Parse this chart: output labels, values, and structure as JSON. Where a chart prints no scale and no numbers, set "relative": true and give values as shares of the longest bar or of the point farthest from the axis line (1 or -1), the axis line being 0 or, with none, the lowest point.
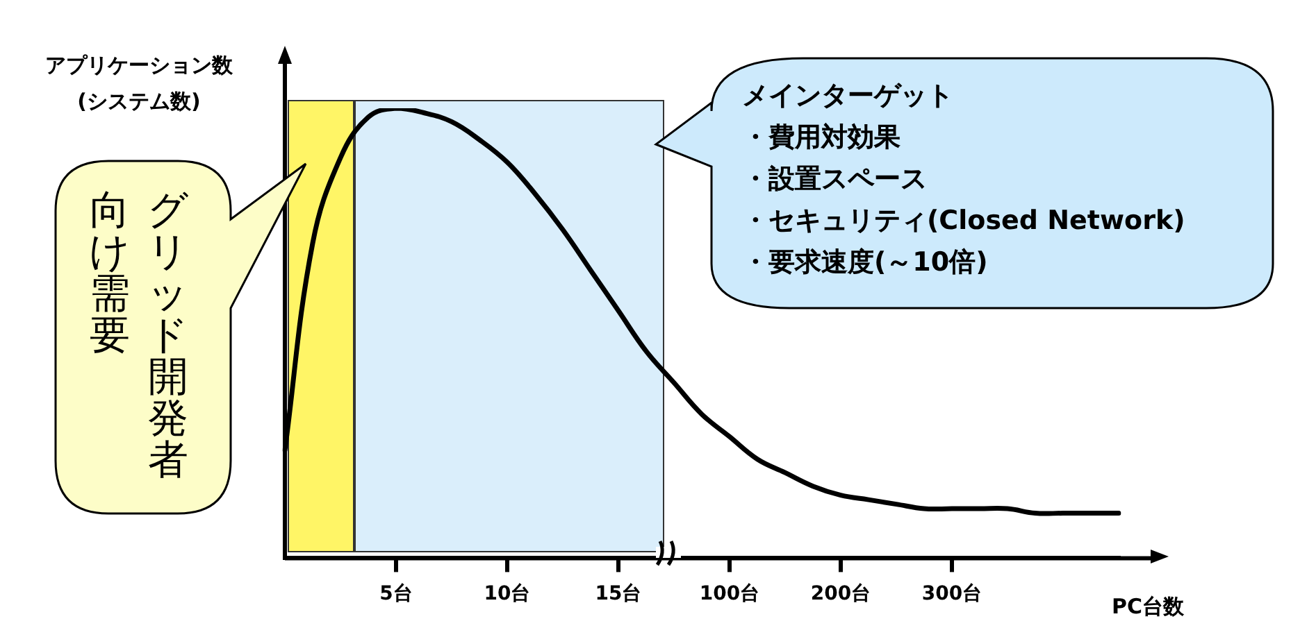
{
  "chart_data": {
    "type": "line",
    "relative": true,
    "ylabel": "アプリケーション数\n(システム数)",
    "xlabel": "PC台数",
    "categories": [
      null,
      null,
      null,
      null,
      "5台",
      null,
      null,
      null,
      "10台",
      null,
      null,
      null,
      "15台",
      null,
      null,
      null,
      "100台",
      null,
      null,
      null,
      "200台",
      null,
      null,
      null,
      "300台",
      null,
      null,
      null,
      null,
      null,
      null
    ],
    "series": [
      {
        "color": "#000000",
        "values": [
          0.24,
          0.7,
          0.89,
          0.98,
          1.0,
          0.99,
          0.97,
          0.93,
          0.88,
          0.81,
          0.73,
          0.64,
          0.55,
          0.46,
          0.39,
          0.32,
          0.27,
          0.22,
          0.19,
          0.16,
          0.14,
          0.13,
          0.12,
          0.11,
          0.11,
          0.11,
          0.11,
          0.1,
          0.1,
          0.1,
          0.1
        ]
      }
    ],
    "annotations": [
      "メインターゲット",
      "・費用対効果",
      "・設置スペース",
      "・セキュリティ(Closed Network)",
      "・要求速度(～10倍)",
      "グリッド開発者",
      "向け需要"
    ],
    "legend": false,
    "grid": false,
    "marker": "none",
    "line_style": "solid"
  }
}
